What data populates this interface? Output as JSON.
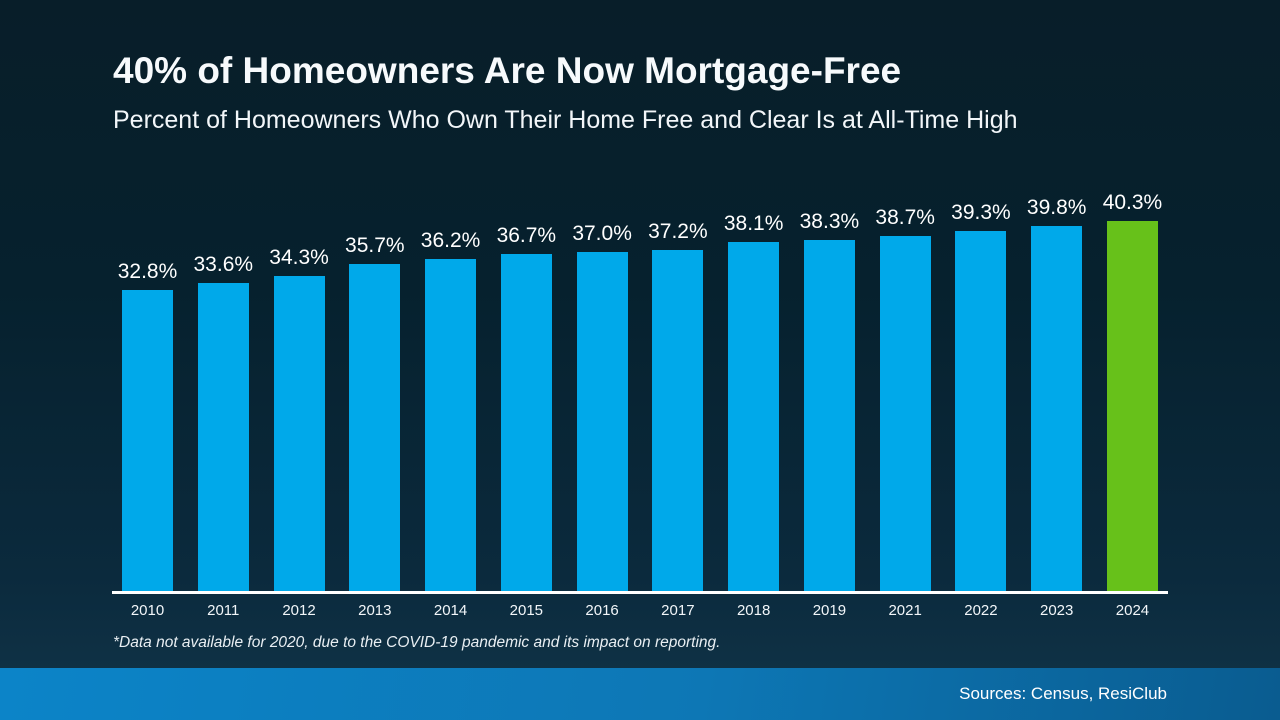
{
  "slide": {
    "title": "40% of Homeowners Are Now Mortgage-Free",
    "subtitle": "Percent of Homeowners Who Own Their Home Free and Clear Is at All-Time High",
    "footnote": "*Data not available for 2020, due to the COVID-19 pandemic and its impact on reporting.",
    "source": "Sources: Census, ResiClub"
  },
  "chart_data": {
    "type": "bar",
    "title": "40% of Homeowners Are Now Mortgage-Free",
    "subtitle": "Percent of Homeowners Who Own Their Home Free and Clear Is at All-Time High",
    "categories": [
      "2010",
      "2011",
      "2012",
      "2013",
      "2014",
      "2015",
      "2016",
      "2017",
      "2018",
      "2019",
      "2021",
      "2022",
      "2023",
      "2024"
    ],
    "values": [
      32.8,
      33.6,
      34.3,
      35.7,
      36.2,
      36.7,
      37.0,
      37.2,
      38.1,
      38.3,
      38.7,
      39.3,
      39.8,
      40.3
    ],
    "value_labels": [
      "32.8%",
      "33.6%",
      "34.3%",
      "35.7%",
      "36.2%",
      "36.7%",
      "37.0%",
      "37.2%",
      "38.1%",
      "38.3%",
      "38.7%",
      "39.3%",
      "39.8%",
      "40.3%"
    ],
    "xlabel": "",
    "ylabel": "",
    "ylim": [
      0,
      40.3
    ],
    "grid": false,
    "legend": "none",
    "bar_color": "#00a9ea",
    "highlight_index": 13,
    "highlight_year": "2024",
    "highlight_color": "#67c11a",
    "note": "*Data not available for 2020, due to the COVID-19 pandemic and its impact on reporting."
  },
  "colors": {
    "background_top": "#081e29",
    "background_bottom": "#113549",
    "bar_blue": "#00a9ea",
    "bar_green": "#67c11a",
    "axis_line": "#ffffff",
    "footer_left": "#0c84c8",
    "footer_right": "#0a5c90",
    "text": "#ffffff"
  }
}
